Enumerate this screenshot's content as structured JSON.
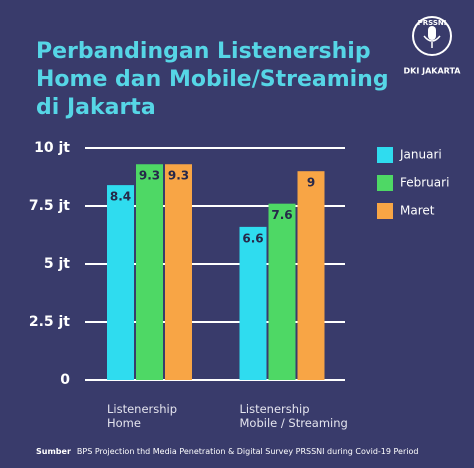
{
  "chart_data": {
    "type": "bar",
    "title": "Perbandingan Listenership\nHome dan Mobile/Streaming\ndi Jakarta",
    "categories": [
      "Listenership\nHome",
      "Listenership\nMobile / Streaming"
    ],
    "series": [
      {
        "name": "Januari",
        "color": "#2fdcef",
        "values": [
          8.4,
          6.6
        ]
      },
      {
        "name": "Februari",
        "color": "#4ed865",
        "values": [
          9.3,
          7.6
        ]
      },
      {
        "name": "Maret",
        "color": "#f8a545",
        "values": [
          9.3,
          9.0
        ]
      }
    ],
    "ylim": [
      0,
      10
    ],
    "yticks": [
      0,
      {
        "value": 2.5,
        "label": "2.5 jt"
      },
      {
        "value": 5,
        "label": "5 jt"
      },
      {
        "value": 7.5,
        "label": "7.5 jt"
      },
      {
        "value": 10,
        "label": "10 jt"
      }
    ],
    "grid": true,
    "logo": {
      "name": "PRSSNI",
      "region": "DKI JAKARTA"
    },
    "source_label": "Sumber",
    "source_text": "BPS Projection thd Media Penetration & Digital Survey PRSSNI during Covid-19 Period"
  }
}
